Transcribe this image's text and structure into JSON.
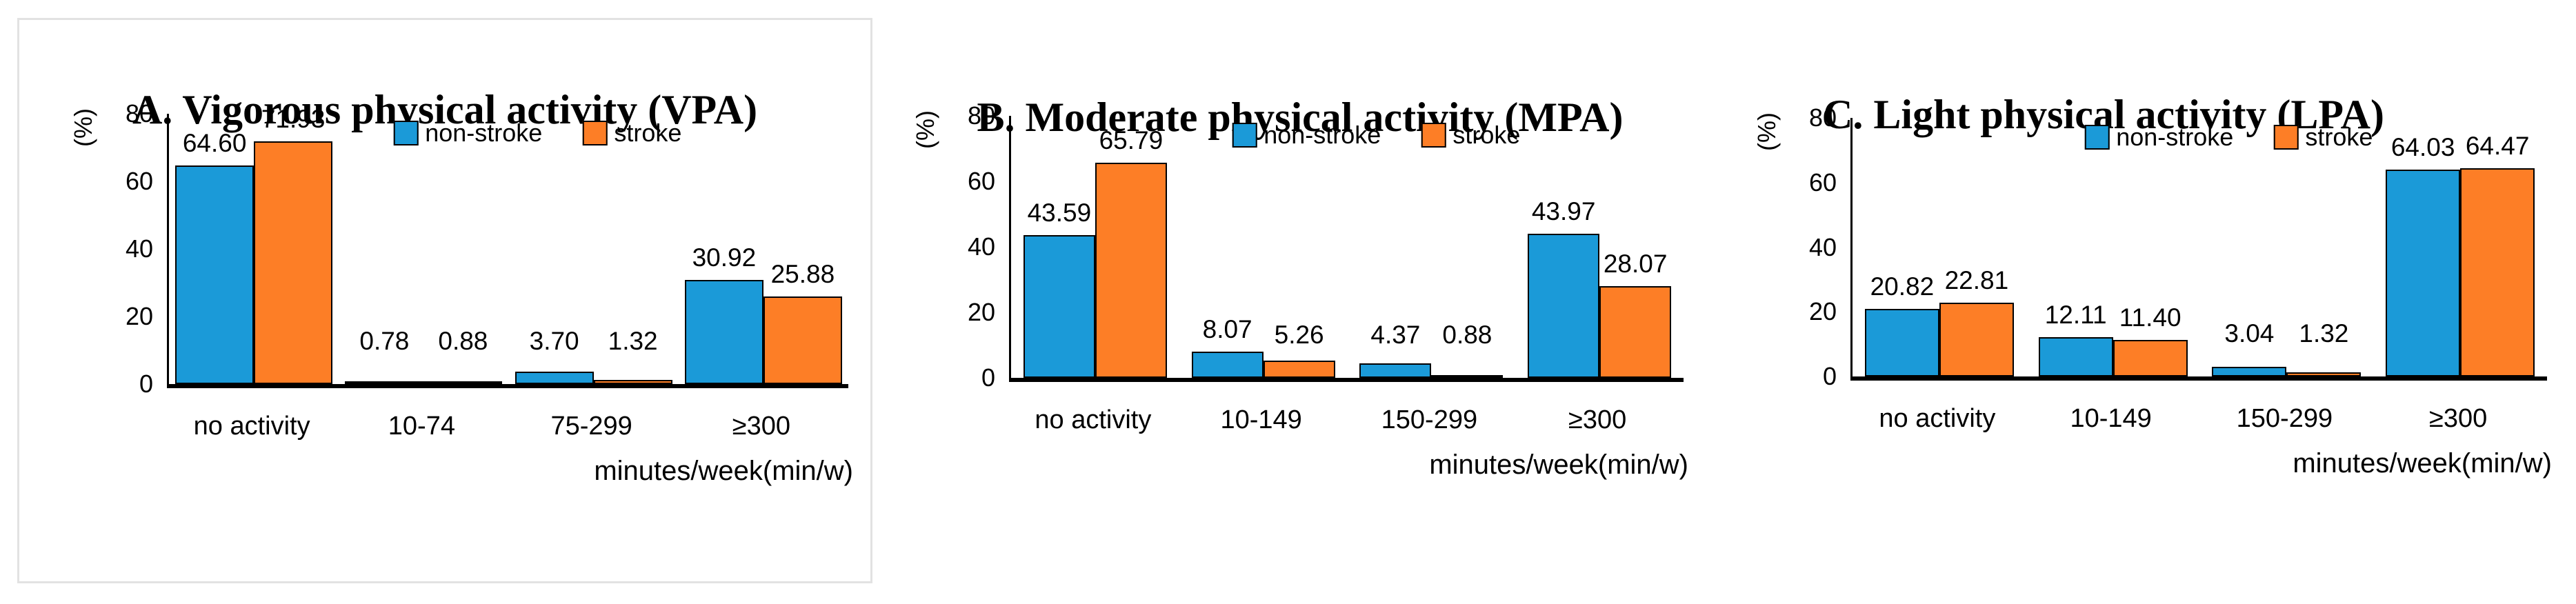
{
  "colors": {
    "non_stroke": "#1b9ad8",
    "stroke": "#fd7e26",
    "axis": "#000000",
    "bar_border": "#000000",
    "panel_border": "#e2e2e2",
    "background": "#ffffff",
    "text": "#000000"
  },
  "legend": {
    "position": "top-center",
    "entries": [
      "non-stroke",
      "stroke"
    ]
  },
  "chart_data": [
    {
      "type": "bar",
      "id": "vpa",
      "title": "A. Vigorous physical activity (VPA)",
      "ylabel": "(%)",
      "xlabel": "minutes/week(min/w)",
      "ylim": [
        0,
        80
      ],
      "yticks": [
        0,
        20,
        40,
        60,
        80
      ],
      "grid": false,
      "legend_position": "top-center",
      "categories": [
        "no activity",
        "10-74",
        "75-299",
        "≥300"
      ],
      "series": [
        {
          "name": "non-stroke",
          "color": "#1b9ad8",
          "values": [
            64.6,
            0.78,
            3.7,
            30.92
          ],
          "value_labels": [
            "64.60",
            "0.78",
            "3.70",
            "30.92"
          ]
        },
        {
          "name": "stroke",
          "color": "#fd7e26",
          "values": [
            71.93,
            0.88,
            1.32,
            25.88
          ],
          "value_labels": [
            "71.93",
            "0.88",
            "1.32",
            "25.88"
          ]
        }
      ]
    },
    {
      "type": "bar",
      "id": "mpa",
      "title": "B. Moderate physical activity (MPA)",
      "ylabel": "(%)",
      "xlabel": "minutes/week(min/w)",
      "ylim": [
        0,
        80
      ],
      "yticks": [
        0,
        20,
        40,
        60,
        80
      ],
      "grid": false,
      "legend_position": "top-center",
      "categories": [
        "no activity",
        "10-149",
        "150-299",
        "≥300"
      ],
      "series": [
        {
          "name": "non-stroke",
          "color": "#1b9ad8",
          "values": [
            43.59,
            8.07,
            4.37,
            43.97
          ],
          "value_labels": [
            "43.59",
            "8.07",
            "4.37",
            "43.97"
          ]
        },
        {
          "name": "stroke",
          "color": "#fd7e26",
          "values": [
            65.79,
            5.26,
            0.88,
            28.07
          ],
          "value_labels": [
            "65.79",
            "5.26",
            "0.88",
            "28.07"
          ]
        }
      ]
    },
    {
      "type": "bar",
      "id": "lpa",
      "title": "C. Light physical activity (LPA)",
      "ylabel": "(%)",
      "xlabel": "minutes/week(min/w)",
      "ylim": [
        0,
        80
      ],
      "yticks": [
        0,
        20,
        40,
        60,
        80
      ],
      "grid": false,
      "legend_position": "top-center",
      "categories": [
        "no activity",
        "10-149",
        "150-299",
        "≥300"
      ],
      "series": [
        {
          "name": "non-stroke",
          "color": "#1b9ad8",
          "values": [
            20.82,
            12.11,
            3.04,
            64.03
          ],
          "value_labels": [
            "20.82",
            "12.11",
            "3.04",
            "64.03"
          ]
        },
        {
          "name": "stroke",
          "color": "#fd7e26",
          "values": [
            22.81,
            11.4,
            1.32,
            64.47
          ],
          "value_labels": [
            "22.81",
            "11.40",
            "1.32",
            "64.47"
          ]
        }
      ]
    }
  ]
}
